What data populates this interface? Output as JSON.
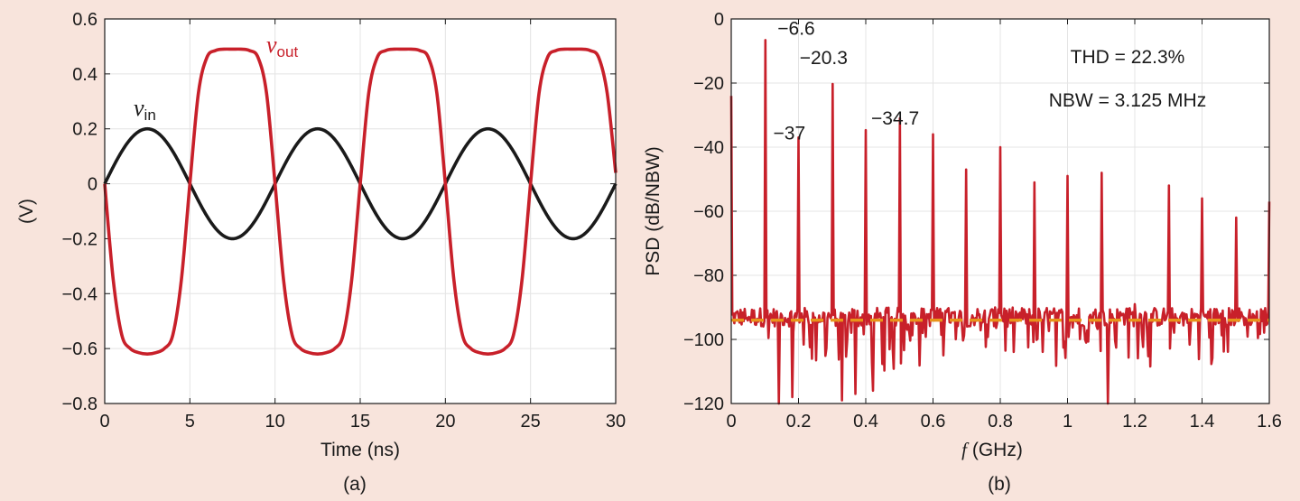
{
  "chart_data": [
    {
      "type": "line",
      "panel_label": "(a)",
      "xlabel": "Time (ns)",
      "ylabel": "(V)",
      "xlim": [
        0,
        30
      ],
      "ylim": [
        -0.8,
        0.6
      ],
      "x_ticks": [
        0,
        5,
        10,
        15,
        20,
        25,
        30
      ],
      "x_tick_labels": [
        "0",
        "5",
        "10",
        "15",
        "20",
        "25",
        "30"
      ],
      "y_ticks": [
        0.6,
        0.4,
        0.2,
        0,
        -0.2,
        -0.4,
        -0.6,
        -0.8
      ],
      "y_tick_labels": [
        "0.6",
        "0.4",
        "0.2",
        "0",
        "−0.2",
        "−0.4",
        "−0.6",
        "−0.8"
      ],
      "grid": true,
      "series": [
        {
          "name": "v",
          "name_sub": "in",
          "color": "#1a1a1a",
          "period_ns": 10,
          "x": [
            0,
            1.25,
            2.5,
            3.75,
            5,
            6.25,
            7.5,
            8.75,
            10,
            11.25,
            12.5,
            13.75,
            15,
            16.25,
            17.5,
            18.75,
            20,
            21.25,
            22.5,
            23.75,
            25,
            26.25,
            27.5,
            28.75,
            30
          ],
          "values": [
            0,
            0.141,
            0.2,
            0.141,
            0,
            -0.141,
            -0.2,
            -0.141,
            0,
            0.141,
            0.2,
            0.141,
            0,
            -0.141,
            -0.2,
            -0.141,
            0,
            0.141,
            0.2,
            0.141,
            0,
            -0.141,
            -0.2,
            -0.141,
            0
          ]
        },
        {
          "name": "v",
          "name_sub": "out",
          "color": "#c8202a",
          "x": [
            0,
            0.5,
            1,
            1.5,
            2,
            2.5,
            3,
            3.5,
            4,
            4.5,
            5,
            5.5,
            6,
            6.5,
            7,
            7.5,
            8,
            8.5,
            9,
            9.5,
            10,
            10.5,
            11,
            11.5,
            12,
            12.5,
            13,
            13.5,
            14,
            14.5,
            15,
            15.5,
            16,
            16.5,
            17,
            17.5,
            18,
            18.5,
            19,
            19.5,
            20,
            20.5,
            21,
            21.5,
            22,
            22.5,
            23,
            23.5,
            24,
            24.5,
            25,
            25.5,
            26,
            26.5,
            27,
            27.5,
            28,
            28.5,
            29,
            29.5,
            30
          ],
          "values": [
            0,
            -0.35,
            -0.55,
            -0.6,
            -0.615,
            -0.62,
            -0.615,
            -0.6,
            -0.55,
            -0.35,
            0,
            0.33,
            0.46,
            0.485,
            0.49,
            0.49,
            0.49,
            0.485,
            0.46,
            0.33,
            0,
            -0.35,
            -0.55,
            -0.6,
            -0.615,
            -0.62,
            -0.615,
            -0.6,
            -0.55,
            -0.35,
            0,
            0.33,
            0.46,
            0.485,
            0.49,
            0.49,
            0.49,
            0.485,
            0.46,
            0.33,
            0,
            -0.35,
            -0.55,
            -0.6,
            -0.615,
            -0.62,
            -0.615,
            -0.6,
            -0.55,
            -0.35,
            0,
            0.33,
            0.46,
            0.485,
            0.49,
            0.49,
            0.49,
            0.485,
            0.46,
            0.33,
            0.04
          ]
        }
      ]
    },
    {
      "type": "line",
      "panel_label": "(b)",
      "xlabel_italic": "f",
      "xlabel_rest": " (GHz)",
      "ylabel": "PSD (dB/NBW)",
      "xlim": [
        0,
        1.6
      ],
      "ylim": [
        -120,
        0
      ],
      "x_ticks": [
        0,
        0.2,
        0.4,
        0.6,
        0.8,
        1,
        1.2,
        1.4,
        1.6
      ],
      "x_tick_labels": [
        "0",
        "0.2",
        "0.4",
        "0.6",
        "0.8",
        "1",
        "1.2",
        "1.4",
        "1.6"
      ],
      "y_ticks": [
        0,
        -20,
        -40,
        -60,
        -80,
        -100,
        -120
      ],
      "y_tick_labels": [
        "0",
        "−20",
        "−40",
        "−60",
        "−80",
        "−100",
        "−120"
      ],
      "grid": true,
      "series": [
        {
          "name": "PSD",
          "color": "#c8202a",
          "noise_floor_level": -93,
          "harmonics_x": [
            0,
            0.1,
            0.2,
            0.3,
            0.4,
            0.5,
            0.6,
            0.7,
            0.8,
            0.9,
            1.0,
            1.1,
            1.2,
            1.3,
            1.4,
            1.5,
            1.6
          ],
          "harmonics_values": [
            -24,
            -6.6,
            -37,
            -20.3,
            -34.7,
            -31,
            -36,
            -47,
            -40,
            -51,
            -49,
            -48,
            -89,
            -52,
            -56,
            -62,
            -57
          ],
          "deep_dips_x": [
            0.14,
            0.18,
            0.33,
            0.37,
            0.42,
            1.12
          ],
          "deep_dips_values": [
            -122,
            -118,
            -119,
            -117,
            -116,
            -121
          ]
        },
        {
          "name": "noise floor",
          "color": "#e8941a",
          "dashed": true,
          "level": -94
        }
      ],
      "annotations": [
        {
          "text": "−6.6",
          "x": 0.1,
          "y": -6.6
        },
        {
          "text": "−20.3",
          "x": 0.3,
          "y": -20.3
        },
        {
          "text": "−37",
          "x": 0.2,
          "y": -37
        },
        {
          "text": "−34.7",
          "x": 0.4,
          "y": -34.7
        }
      ],
      "thd_text": "THD = 22.3%",
      "nbw_text": "NBW = 3.125 MHz"
    }
  ]
}
